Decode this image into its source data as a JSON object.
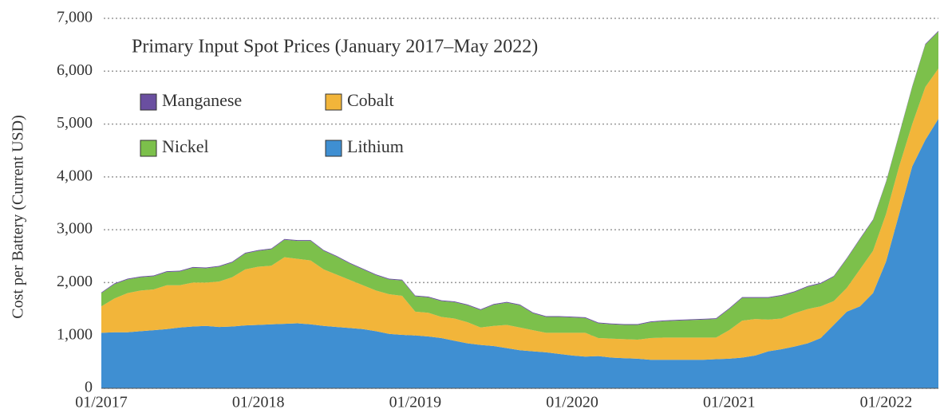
{
  "chart_data": {
    "type": "stacked_area",
    "title": "Primary Input Spot Prices (January 2017–May 2022)",
    "y_label": "Cost per Battery (Current USD)",
    "categories": [
      "01/2017",
      null,
      null,
      null,
      null,
      null,
      null,
      null,
      null,
      null,
      null,
      null,
      "01/2018",
      null,
      null,
      null,
      null,
      null,
      null,
      null,
      null,
      null,
      null,
      null,
      "01/2019",
      null,
      null,
      null,
      null,
      null,
      null,
      null,
      null,
      null,
      null,
      null,
      "01/2020",
      null,
      null,
      null,
      null,
      null,
      null,
      null,
      null,
      null,
      null,
      null,
      "01/2021",
      null,
      null,
      null,
      null,
      null,
      null,
      null,
      null,
      null,
      null,
      null,
      "01/2022",
      null,
      null,
      null,
      null
    ],
    "series": [
      {
        "name": "Lithium",
        "color": "#3f8fd2",
        "values": [
          1050,
          1060,
          1060,
          1080,
          1100,
          1120,
          1150,
          1170,
          1180,
          1160,
          1170,
          1190,
          1200,
          1210,
          1220,
          1230,
          1210,
          1180,
          1160,
          1140,
          1120,
          1080,
          1030,
          1010,
          1000,
          980,
          950,
          900,
          850,
          820,
          800,
          760,
          720,
          700,
          680,
          650,
          620,
          600,
          610,
          580,
          570,
          560,
          540,
          540,
          540,
          540,
          540,
          550,
          560,
          580,
          620,
          700,
          740,
          790,
          850,
          950,
          1200,
          1450,
          1550,
          1800,
          2400,
          3300,
          4200,
          4700,
          5100
        ]
      },
      {
        "name": "Cobalt",
        "color": "#f2b53a",
        "values": [
          500,
          640,
          740,
          770,
          770,
          830,
          800,
          830,
          820,
          860,
          930,
          1060,
          1100,
          1110,
          1260,
          1220,
          1210,
          1070,
          990,
          910,
          830,
          770,
          750,
          740,
          450,
          450,
          400,
          420,
          400,
          330,
          380,
          440,
          430,
          400,
          370,
          400,
          430,
          450,
          340,
          360,
          360,
          360,
          410,
          420,
          420,
          420,
          420,
          410,
          540,
          700,
          690,
          600,
          580,
          630,
          650,
          600,
          450,
          450,
          700,
          800,
          900,
          900,
          800,
          1000,
          950
        ]
      },
      {
        "name": "Nickel",
        "color": "#7cc04b",
        "values": [
          250,
          270,
          260,
          250,
          250,
          250,
          260,
          280,
          270,
          280,
          280,
          300,
          300,
          310,
          330,
          340,
          370,
          350,
          340,
          310,
          300,
          290,
          280,
          290,
          290,
          290,
          300,
          310,
          320,
          330,
          400,
          420,
          420,
          320,
          300,
          300,
          290,
          280,
          280,
          270,
          270,
          280,
          300,
          310,
          320,
          330,
          340,
          350,
          400,
          430,
          400,
          410,
          430,
          400,
          420,
          430,
          460,
          550,
          570,
          580,
          600,
          600,
          700,
          800,
          700
        ]
      },
      {
        "name": "Manganese",
        "color": "#6a4fa0",
        "values": [
          15,
          15,
          15,
          15,
          15,
          15,
          15,
          15,
          15,
          15,
          15,
          15,
          15,
          15,
          15,
          15,
          15,
          15,
          15,
          15,
          15,
          15,
          15,
          15,
          15,
          15,
          15,
          15,
          15,
          15,
          15,
          15,
          15,
          15,
          15,
          15,
          15,
          15,
          15,
          15,
          15,
          15,
          15,
          15,
          15,
          15,
          15,
          15,
          15,
          15,
          15,
          15,
          15,
          15,
          15,
          15,
          15,
          15,
          15,
          15,
          15,
          15,
          15,
          15,
          15
        ]
      }
    ],
    "ylim": [
      0,
      7000
    ],
    "yticks": [
      0,
      {
        "value": 1000,
        "label": "1,000"
      },
      {
        "value": 2000,
        "label": "2,000"
      },
      {
        "value": 3000,
        "label": "3,000"
      },
      {
        "value": 4000,
        "label": "4,000"
      },
      {
        "value": 5000,
        "label": "5,000"
      },
      {
        "value": 6000,
        "label": "6,000"
      },
      {
        "value": 7000,
        "label": "7,000"
      }
    ],
    "grid": true
  }
}
